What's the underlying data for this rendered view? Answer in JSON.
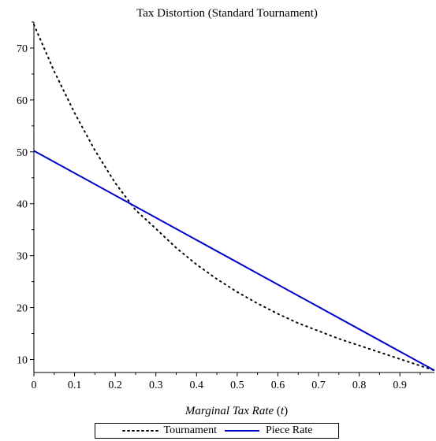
{
  "chart_data": {
    "type": "line",
    "title": "Tax Distortion (Standard Tournament)",
    "xlabel": "Marginal Tax Rate",
    "xlabel_var": "t",
    "ylabel": "",
    "xlim": [
      0,
      0.985
    ],
    "ylim": [
      7.5,
      75
    ],
    "x_ticks": [
      0,
      0.1,
      0.2,
      0.3,
      0.4,
      0.5,
      0.6,
      0.7,
      0.8,
      0.9
    ],
    "x_tick_labels": [
      "0",
      "0.1",
      "0.2",
      "0.3",
      "0.4",
      "0.5",
      "0.6",
      "0.7",
      "0.8",
      "0.9"
    ],
    "y_ticks": [
      10,
      20,
      30,
      40,
      50,
      60,
      70
    ],
    "y_tick_labels": [
      "10",
      "20",
      "30",
      "40",
      "50",
      "60",
      "70"
    ],
    "grid": false,
    "legend_placement": "bottom",
    "series": [
      {
        "name": "Tournament",
        "style": "dotted",
        "color": "#000000",
        "x": [
          0,
          0.05,
          0.1,
          0.15,
          0.2,
          0.25,
          0.3,
          0.35,
          0.4,
          0.45,
          0.5,
          0.55,
          0.6,
          0.65,
          0.7,
          0.75,
          0.8,
          0.85,
          0.9,
          0.95,
          0.985
        ],
        "y": [
          74.5,
          65.5,
          57.5,
          50.3,
          44.0,
          38.8,
          35.2,
          31.5,
          28.3,
          25.5,
          23.0,
          20.8,
          18.8,
          17.0,
          15.5,
          14.0,
          12.7,
          11.4,
          10.1,
          8.8,
          7.9
        ]
      },
      {
        "name": "Piece Rate",
        "style": "solid",
        "color": "#0000c8",
        "x": [
          0,
          0.985
        ],
        "y": [
          50.2,
          7.9
        ]
      }
    ]
  },
  "legend": {
    "tournament_label": "Tournament",
    "piece_rate_label": "Piece Rate"
  }
}
